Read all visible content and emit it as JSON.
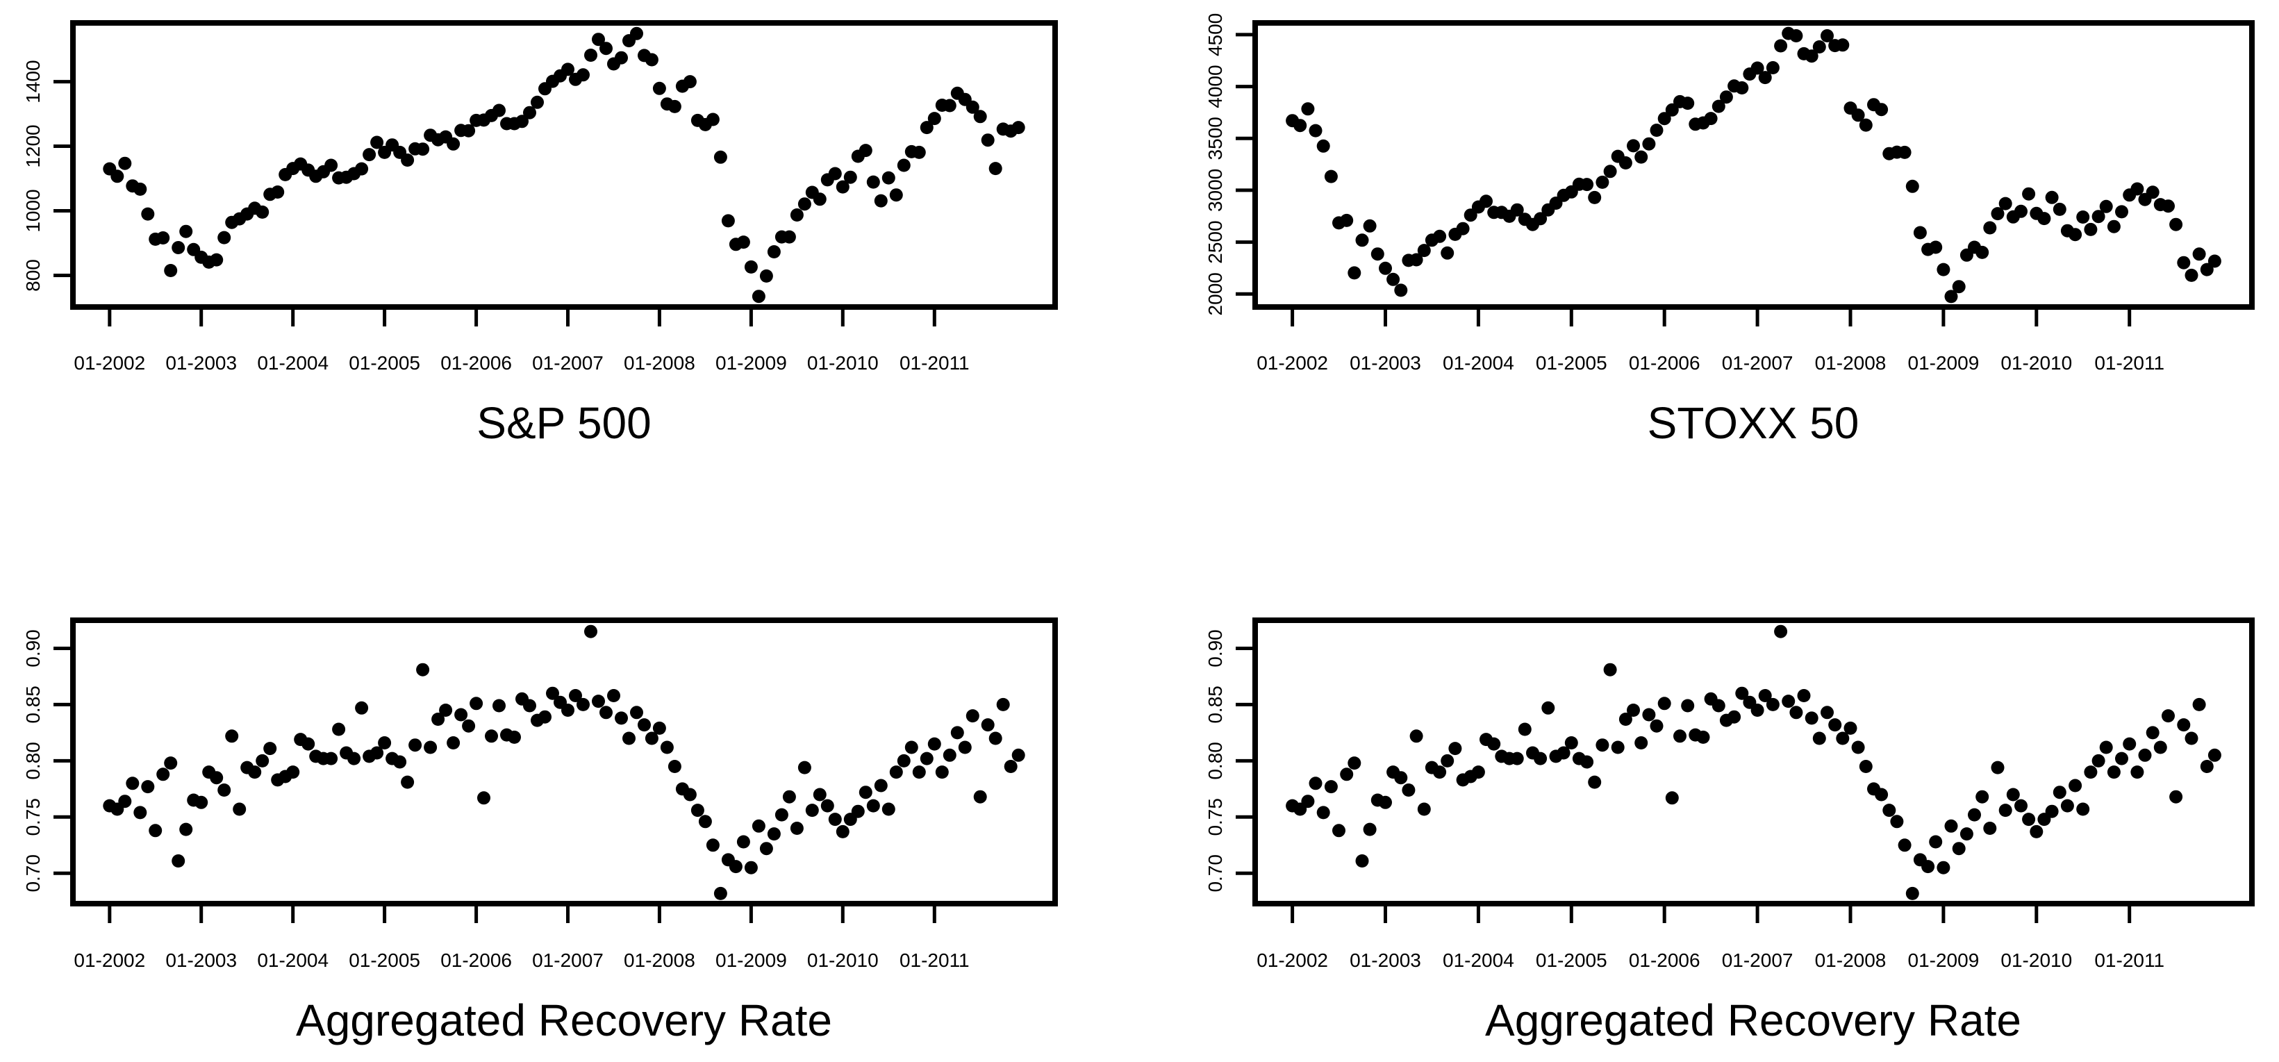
{
  "page": {
    "background": "#ffffff",
    "foreground": "#000000"
  },
  "chart_data": [
    {
      "type": "scatter",
      "title": "S&P 500",
      "point_color": "#000000",
      "point_shape": "filled-circle",
      "x_start": "01-2002",
      "x_frequency": "monthly",
      "n_points": 120,
      "x_tick_positions": [
        0,
        12,
        24,
        36,
        48,
        60,
        72,
        84,
        96,
        108
      ],
      "x_tick_labels": [
        "01-2002",
        "01-2003",
        "01-2004",
        "01-2005",
        "01-2006",
        "01-2007",
        "01-2008",
        "01-2009",
        "01-2010",
        "01-2011"
      ],
      "y_tick_values": [
        800,
        1000,
        1200,
        1400
      ],
      "y_tick_labels": [
        "800",
        "1000",
        "1200",
        "1400"
      ],
      "xlim": [
        -4.8,
        123.8
      ],
      "ylim": [
        702,
        1582
      ],
      "grid": false,
      "legend": "none",
      "values": [
        1130,
        1107,
        1147,
        1077,
        1067,
        990,
        912,
        916,
        815,
        886,
        936,
        880,
        856,
        841,
        848,
        917,
        964,
        975,
        990,
        1008,
        996,
        1051,
        1058,
        1112,
        1131,
        1145,
        1126,
        1107,
        1121,
        1141,
        1102,
        1104,
        1115,
        1130,
        1174,
        1212,
        1181,
        1204,
        1181,
        1157,
        1192,
        1191,
        1234,
        1220,
        1229,
        1207,
        1249,
        1248,
        1280,
        1281,
        1295,
        1311,
        1270,
        1270,
        1277,
        1304,
        1336,
        1378,
        1401,
        1418,
        1438,
        1407,
        1421,
        1482,
        1531,
        1503,
        1455,
        1474,
        1527,
        1549,
        1481,
        1468,
        1379,
        1331,
        1323,
        1386,
        1400,
        1280,
        1267,
        1283,
        1166,
        969,
        896,
        903,
        826,
        735,
        798,
        873,
        919,
        919,
        987,
        1021,
        1057,
        1036,
        1096,
        1115,
        1074,
        1104,
        1169,
        1187,
        1089,
        1031,
        1102,
        1049,
        1141,
        1183,
        1181,
        1258,
        1286,
        1327,
        1326,
        1364,
        1345,
        1321,
        1292,
        1219,
        1131,
        1253,
        1247,
        1258
      ]
    },
    {
      "type": "scatter",
      "title": "STOXX 50",
      "point_color": "#000000",
      "point_shape": "filled-circle",
      "x_start": "01-2002",
      "x_frequency": "monthly",
      "n_points": 120,
      "x_tick_positions": [
        0,
        12,
        24,
        36,
        48,
        60,
        72,
        84,
        96,
        108
      ],
      "x_tick_labels": [
        "01-2002",
        "01-2003",
        "01-2004",
        "01-2005",
        "01-2006",
        "01-2007",
        "01-2008",
        "01-2009",
        "01-2010",
        "01-2011"
      ],
      "y_tick_values": [
        2000,
        2500,
        3000,
        3500,
        4000,
        4500
      ],
      "y_tick_labels": [
        "2000",
        "2500",
        "3000",
        "3500",
        "4000",
        "4500"
      ],
      "xlim": [
        -4.8,
        123.8
      ],
      "ylim": [
        1875,
        4613
      ],
      "grid": false,
      "legend": "none",
      "values": [
        3671,
        3624,
        3784,
        3575,
        3426,
        3133,
        2686,
        2709,
        2204,
        2519,
        2656,
        2386,
        2248,
        2141,
        2036,
        2324,
        2330,
        2420,
        2519,
        2556,
        2395,
        2575,
        2630,
        2761,
        2839,
        2894,
        2787,
        2787,
        2749,
        2811,
        2720,
        2670,
        2726,
        2811,
        2876,
        2951,
        2984,
        3058,
        3056,
        2930,
        3077,
        3182,
        3327,
        3264,
        3429,
        3320,
        3447,
        3579,
        3691,
        3774,
        3854,
        3839,
        3637,
        3649,
        3692,
        3809,
        3899,
        4005,
        3987,
        4120,
        4178,
        4087,
        4181,
        4392,
        4512,
        4489,
        4316,
        4294,
        4382,
        4489,
        4395,
        4400,
        3792,
        3724,
        3628,
        3825,
        3778,
        3353,
        3367,
        3365,
        3038,
        2591,
        2430,
        2451,
        2236,
        1976,
        2071,
        2375,
        2451,
        2401,
        2638,
        2775,
        2872,
        2743,
        2797,
        2965,
        2777,
        2728,
        2931,
        2816,
        2610,
        2573,
        2742,
        2622,
        2747,
        2844,
        2650,
        2793,
        2954,
        3013,
        2911,
        2981,
        2862,
        2848,
        2670,
        2302,
        2180,
        2385,
        2236,
        2317
      ]
    },
    {
      "type": "scatter",
      "title": "Aggregated Recovery Rate",
      "point_color": "#000000",
      "point_shape": "filled-circle",
      "x_start": "01-2002",
      "x_frequency": "monthly",
      "n_points": 120,
      "x_tick_positions": [
        0,
        12,
        24,
        36,
        48,
        60,
        72,
        84,
        96,
        108
      ],
      "x_tick_labels": [
        "01-2002",
        "01-2003",
        "01-2004",
        "01-2005",
        "01-2006",
        "01-2007",
        "01-2008",
        "01-2009",
        "01-2010",
        "01-2011"
      ],
      "y_tick_values": [
        0.7,
        0.75,
        0.8,
        0.85,
        0.9
      ],
      "y_tick_labels": [
        "0.70",
        "0.75",
        "0.80",
        "0.85",
        "0.90"
      ],
      "xlim": [
        -4.8,
        123.8
      ],
      "ylim": [
        0.673,
        0.925
      ],
      "grid": false,
      "legend": "none",
      "values": [
        0.76,
        0.757,
        0.764,
        0.78,
        0.754,
        0.777,
        0.738,
        0.788,
        0.798,
        0.711,
        0.739,
        0.765,
        0.763,
        0.79,
        0.785,
        0.774,
        0.822,
        0.757,
        0.794,
        0.79,
        0.8,
        0.811,
        0.783,
        0.786,
        0.79,
        0.819,
        0.815,
        0.804,
        0.802,
        0.802,
        0.828,
        0.807,
        0.802,
        0.847,
        0.804,
        0.807,
        0.816,
        0.802,
        0.799,
        0.781,
        0.814,
        0.881,
        0.812,
        0.837,
        0.845,
        0.816,
        0.841,
        0.831,
        0.851,
        0.767,
        0.822,
        0.849,
        0.823,
        0.821,
        0.855,
        0.849,
        0.836,
        0.839,
        0.86,
        0.852,
        0.845,
        0.858,
        0.85,
        0.915,
        0.853,
        0.843,
        0.858,
        0.838,
        0.82,
        0.843,
        0.832,
        0.82,
        0.829,
        0.812,
        0.795,
        0.775,
        0.77,
        0.756,
        0.746,
        0.725,
        0.682,
        0.712,
        0.706,
        0.728,
        0.705,
        0.742,
        0.722,
        0.735,
        0.752,
        0.768,
        0.74,
        0.794,
        0.756,
        0.77,
        0.76,
        0.748,
        0.737,
        0.748,
        0.755,
        0.772,
        0.76,
        0.778,
        0.757,
        0.79,
        0.8,
        0.812,
        0.79,
        0.802,
        0.815,
        0.79,
        0.805,
        0.825,
        0.812,
        0.84,
        0.768,
        0.832,
        0.82,
        0.85,
        0.795,
        0.805
      ]
    },
    {
      "type": "scatter",
      "title": "Aggregated Recovery Rate",
      "point_color": "#000000",
      "point_shape": "filled-circle",
      "x_start": "01-2002",
      "x_frequency": "monthly",
      "n_points": 120,
      "x_tick_positions": [
        0,
        12,
        24,
        36,
        48,
        60,
        72,
        84,
        96,
        108
      ],
      "x_tick_labels": [
        "01-2002",
        "01-2003",
        "01-2004",
        "01-2005",
        "01-2006",
        "01-2007",
        "01-2008",
        "01-2009",
        "01-2010",
        "01-2011"
      ],
      "y_tick_values": [
        0.7,
        0.75,
        0.8,
        0.85,
        0.9
      ],
      "y_tick_labels": [
        "0.70",
        "0.75",
        "0.80",
        "0.85",
        "0.90"
      ],
      "xlim": [
        -4.8,
        123.8
      ],
      "ylim": [
        0.673,
        0.925
      ],
      "grid": false,
      "legend": "none",
      "values": [
        0.76,
        0.757,
        0.764,
        0.78,
        0.754,
        0.777,
        0.738,
        0.788,
        0.798,
        0.711,
        0.739,
        0.765,
        0.763,
        0.79,
        0.785,
        0.774,
        0.822,
        0.757,
        0.794,
        0.79,
        0.8,
        0.811,
        0.783,
        0.786,
        0.79,
        0.819,
        0.815,
        0.804,
        0.802,
        0.802,
        0.828,
        0.807,
        0.802,
        0.847,
        0.804,
        0.807,
        0.816,
        0.802,
        0.799,
        0.781,
        0.814,
        0.881,
        0.812,
        0.837,
        0.845,
        0.816,
        0.841,
        0.831,
        0.851,
        0.767,
        0.822,
        0.849,
        0.823,
        0.821,
        0.855,
        0.849,
        0.836,
        0.839,
        0.86,
        0.852,
        0.845,
        0.858,
        0.85,
        0.915,
        0.853,
        0.843,
        0.858,
        0.838,
        0.82,
        0.843,
        0.832,
        0.82,
        0.829,
        0.812,
        0.795,
        0.775,
        0.77,
        0.756,
        0.746,
        0.725,
        0.682,
        0.712,
        0.706,
        0.728,
        0.705,
        0.742,
        0.722,
        0.735,
        0.752,
        0.768,
        0.74,
        0.794,
        0.756,
        0.77,
        0.76,
        0.748,
        0.737,
        0.748,
        0.755,
        0.772,
        0.76,
        0.778,
        0.757,
        0.79,
        0.8,
        0.812,
        0.79,
        0.802,
        0.815,
        0.79,
        0.805,
        0.825,
        0.812,
        0.84,
        0.768,
        0.832,
        0.82,
        0.85,
        0.795,
        0.805
      ]
    }
  ]
}
